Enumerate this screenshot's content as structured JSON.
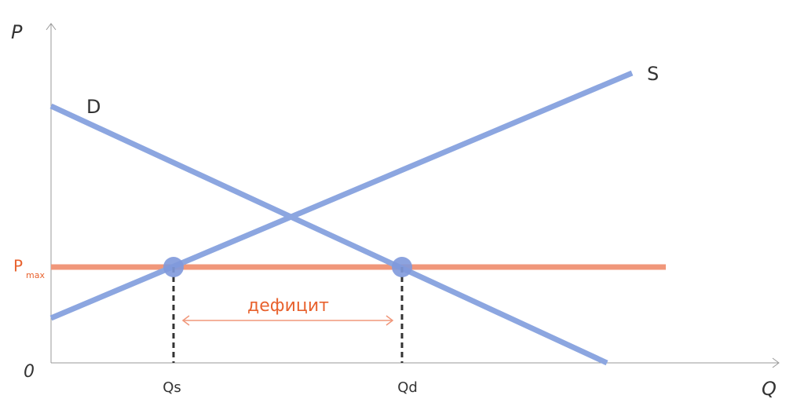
{
  "axes": {
    "y_label": "P",
    "x_label": "Q",
    "origin": "0"
  },
  "curves": {
    "demand": "D",
    "supply": "S"
  },
  "price_ceiling": {
    "main": "P",
    "sub": "max"
  },
  "shortage": "дефицит",
  "quantities": {
    "supplied": "Qs",
    "demanded": "Qd"
  }
}
